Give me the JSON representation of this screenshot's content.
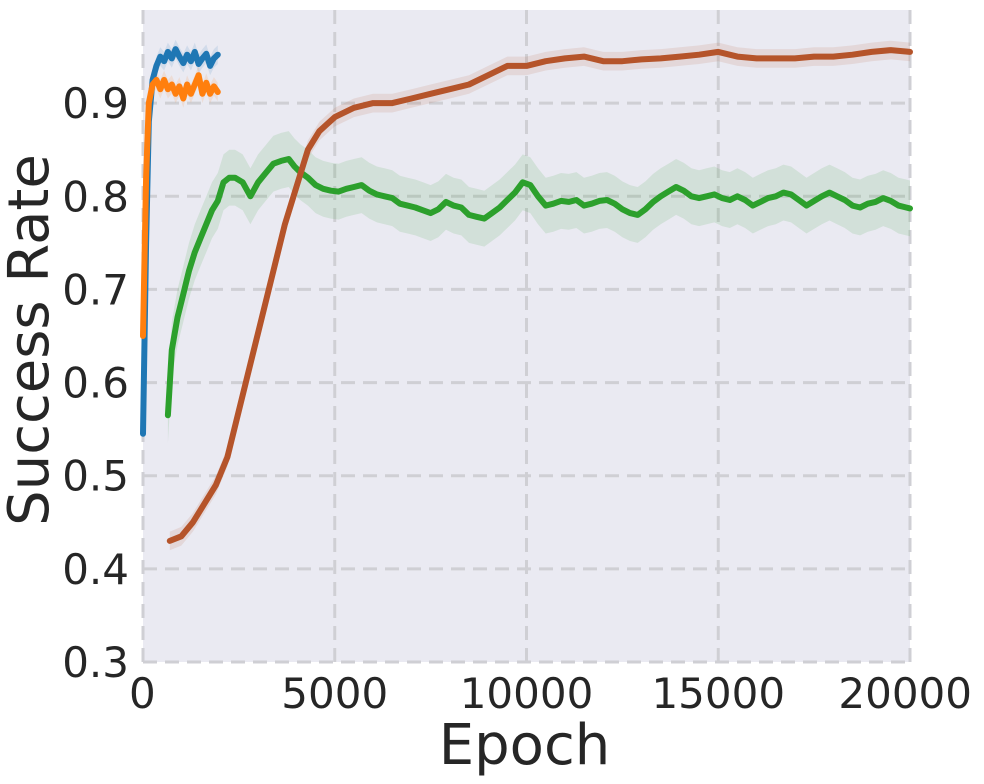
{
  "chart_data": {
    "type": "line",
    "title": "",
    "xlabel": "Epoch",
    "ylabel": "Success Rate",
    "xlim": [
      0,
      20000
    ],
    "ylim": [
      0.3,
      1.0
    ],
    "xticks": [
      0,
      5000,
      10000,
      15000,
      20000
    ],
    "xtick_labels": [
      "0",
      "5000",
      "10000",
      "15000",
      "20000"
    ],
    "yticks": [
      0.3,
      0.4,
      0.5,
      0.6,
      0.7,
      0.8,
      0.9
    ],
    "ytick_labels": [
      "0.3",
      "0.4",
      "0.5",
      "0.6",
      "0.7",
      "0.8",
      "0.9"
    ],
    "grid": true,
    "grid_style": "dashed",
    "background": "#eaeaf2",
    "legend": null,
    "series": [
      {
        "color": "#1f77b4",
        "shade": 0.01,
        "x": [
          0,
          80,
          150,
          250,
          350,
          450,
          550,
          650,
          750,
          850,
          950,
          1050,
          1150,
          1250,
          1350,
          1450,
          1550,
          1650,
          1750,
          1850,
          1950
        ],
        "y": [
          0.545,
          0.75,
          0.88,
          0.925,
          0.94,
          0.95,
          0.945,
          0.955,
          0.948,
          0.958,
          0.95,
          0.943,
          0.952,
          0.945,
          0.955,
          0.942,
          0.948,
          0.953,
          0.94,
          0.948,
          0.952
        ]
      },
      {
        "color": "#ff7f0e",
        "shade": 0.01,
        "x": [
          0,
          80,
          150,
          250,
          350,
          450,
          550,
          650,
          750,
          850,
          950,
          1050,
          1150,
          1250,
          1350,
          1450,
          1550,
          1650,
          1750,
          1850,
          1950
        ],
        "y": [
          0.65,
          0.82,
          0.9,
          0.92,
          0.925,
          0.915,
          0.925,
          0.915,
          0.92,
          0.91,
          0.918,
          0.905,
          0.92,
          0.91,
          0.92,
          0.93,
          0.91,
          0.922,
          0.91,
          0.918,
          0.912
        ]
      },
      {
        "color": "#2ca02c",
        "shade": 0.03,
        "x": [
          650,
          750,
          900,
          1050,
          1200,
          1350,
          1500,
          1650,
          1800,
          1950,
          2100,
          2250,
          2400,
          2600,
          2800,
          3000,
          3200,
          3400,
          3600,
          3800,
          3950,
          4100,
          4300,
          4500,
          4700,
          4900,
          5100,
          5300,
          5500,
          5700,
          5900,
          6100,
          6300,
          6500,
          6700,
          6900,
          7100,
          7300,
          7500,
          7700,
          7900,
          8100,
          8300,
          8500,
          8700,
          8900,
          9100,
          9300,
          9500,
          9700,
          9900,
          10100,
          10300,
          10500,
          10700,
          10900,
          11100,
          11300,
          11500,
          11700,
          11900,
          12100,
          12300,
          12500,
          12700,
          12900,
          13100,
          13300,
          13500,
          13700,
          13900,
          14100,
          14300,
          14500,
          14700,
          14900,
          15100,
          15300,
          15500,
          15700,
          15900,
          16100,
          16300,
          16500,
          16700,
          16900,
          17100,
          17300,
          17500,
          17700,
          17900,
          18100,
          18300,
          18500,
          18700,
          18900,
          19100,
          19300,
          19500,
          19700,
          19900,
          20000
        ],
        "y": [
          0.565,
          0.635,
          0.67,
          0.695,
          0.72,
          0.74,
          0.755,
          0.77,
          0.785,
          0.795,
          0.815,
          0.82,
          0.82,
          0.815,
          0.8,
          0.815,
          0.825,
          0.835,
          0.838,
          0.84,
          0.832,
          0.826,
          0.82,
          0.812,
          0.808,
          0.806,
          0.805,
          0.808,
          0.81,
          0.812,
          0.806,
          0.802,
          0.8,
          0.798,
          0.792,
          0.79,
          0.788,
          0.785,
          0.782,
          0.786,
          0.794,
          0.79,
          0.788,
          0.78,
          0.778,
          0.776,
          0.782,
          0.788,
          0.796,
          0.804,
          0.815,
          0.812,
          0.8,
          0.79,
          0.792,
          0.795,
          0.794,
          0.796,
          0.79,
          0.792,
          0.795,
          0.796,
          0.792,
          0.786,
          0.782,
          0.78,
          0.786,
          0.794,
          0.8,
          0.805,
          0.81,
          0.806,
          0.8,
          0.798,
          0.8,
          0.802,
          0.798,
          0.796,
          0.8,
          0.796,
          0.79,
          0.794,
          0.798,
          0.8,
          0.804,
          0.802,
          0.796,
          0.79,
          0.795,
          0.8,
          0.804,
          0.8,
          0.796,
          0.79,
          0.788,
          0.792,
          0.794,
          0.798,
          0.795,
          0.79,
          0.788,
          0.787
        ]
      },
      {
        "color": "#b5542a",
        "shade": 0.01,
        "x": [
          700,
          1000,
          1300,
          1600,
          1900,
          2200,
          2500,
          2800,
          3100,
          3400,
          3700,
          4000,
          4300,
          4600,
          5000,
          5500,
          6000,
          6500,
          7000,
          7500,
          8000,
          8500,
          9000,
          9500,
          10000,
          10500,
          11000,
          11500,
          12000,
          12500,
          13000,
          13500,
          14000,
          14500,
          15000,
          15500,
          16000,
          16500,
          17000,
          17500,
          18000,
          18500,
          19000,
          19500,
          20000
        ],
        "y": [
          0.43,
          0.435,
          0.45,
          0.47,
          0.49,
          0.52,
          0.57,
          0.62,
          0.67,
          0.72,
          0.77,
          0.81,
          0.85,
          0.87,
          0.885,
          0.895,
          0.9,
          0.9,
          0.905,
          0.91,
          0.915,
          0.92,
          0.93,
          0.94,
          0.94,
          0.945,
          0.948,
          0.95,
          0.945,
          0.945,
          0.947,
          0.948,
          0.95,
          0.952,
          0.955,
          0.95,
          0.948,
          0.948,
          0.948,
          0.95,
          0.95,
          0.952,
          0.955,
          0.957,
          0.955
        ]
      }
    ]
  }
}
